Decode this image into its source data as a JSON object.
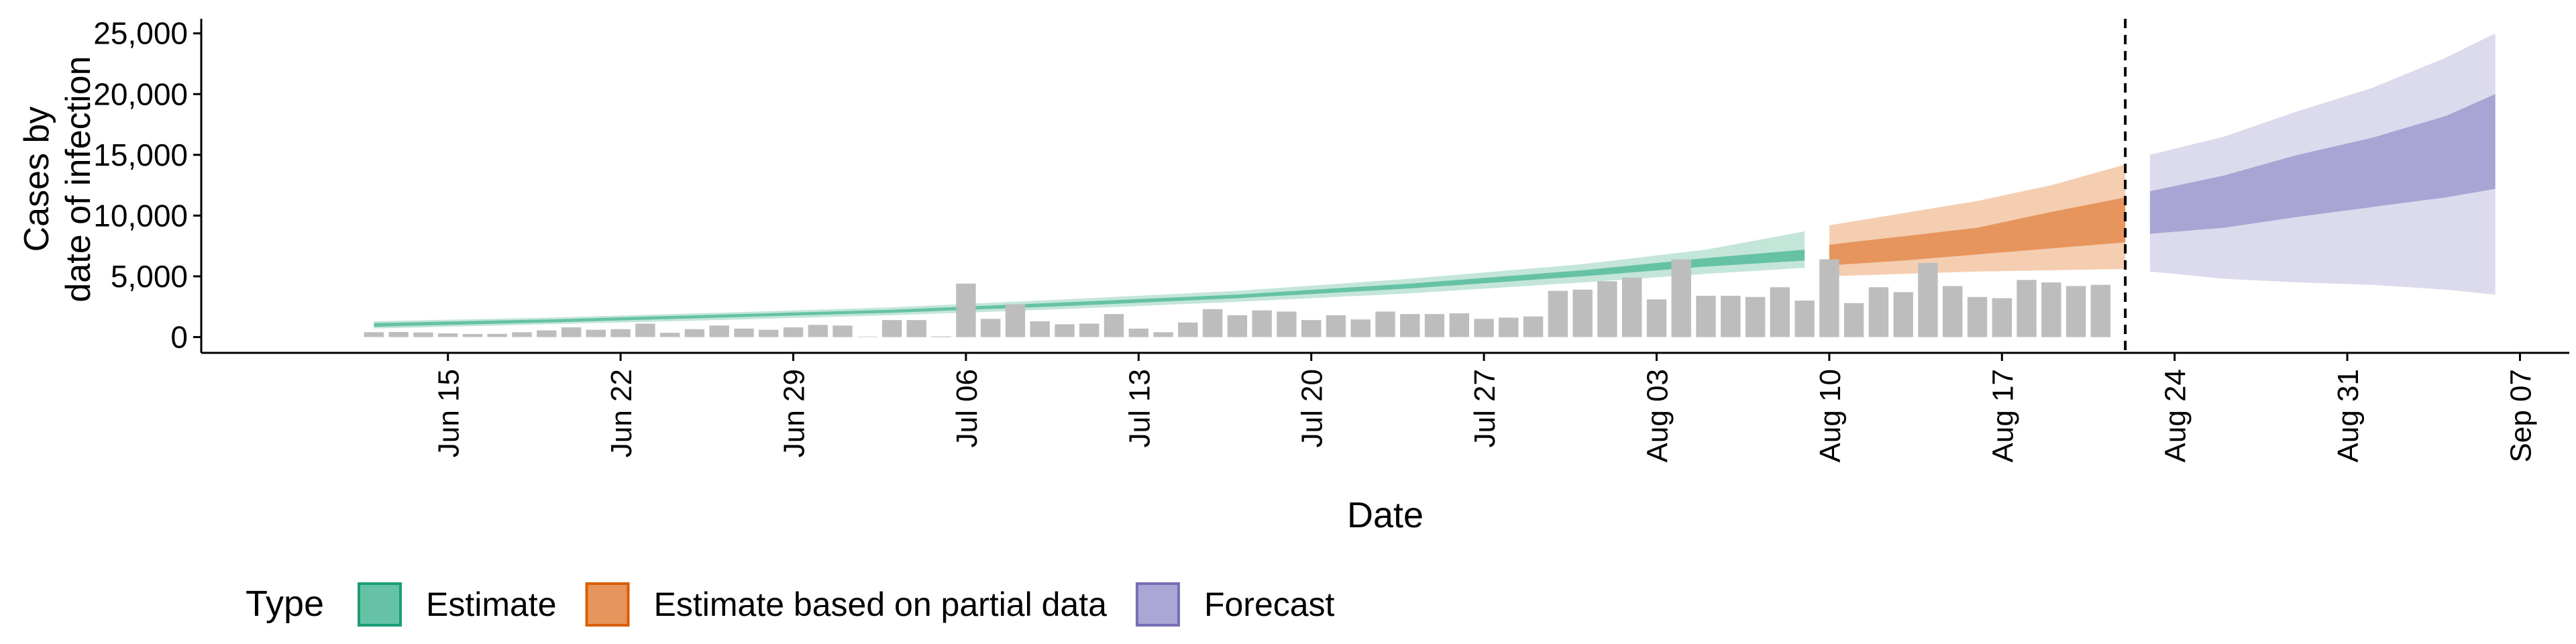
{
  "chart_data": {
    "type": "bar",
    "xlabel": "Date",
    "ylabel": [
      "Cases by",
      "date of infection"
    ],
    "x_ticks": [
      "2020-06-15",
      "2020-06-22",
      "2020-06-29",
      "2020-07-06",
      "2020-07-13",
      "2020-07-20",
      "2020-07-27",
      "2020-08-03",
      "2020-08-10",
      "2020-08-17",
      "2020-08-24",
      "2020-08-31",
      "2020-09-07"
    ],
    "x_tick_labels": [
      "Jun 15",
      "Jun 22",
      "Jun 29",
      "Jul 06",
      "Jul 13",
      "Jul 20",
      "Jul 27",
      "Aug 03",
      "Aug 10",
      "Aug 17",
      "Aug 24",
      "Aug 31",
      "Sep 07"
    ],
    "y_ticks": [
      0,
      5000,
      10000,
      15000,
      20000,
      25000
    ],
    "y_tick_labels": [
      "0",
      "5,000",
      "10,000",
      "15,000",
      "20,000",
      "25,000"
    ],
    "xlim": [
      "2020-06-05",
      "2020-09-09"
    ],
    "ylim": [
      -1300,
      26200
    ],
    "forecast_start": "2020-08-22",
    "grid": false,
    "legend_position": "bottom",
    "legend_title": "Type",
    "legend": [
      {
        "label": "Estimate",
        "fill": "#66c2a5",
        "stroke": "#1b9e77"
      },
      {
        "label": "Estimate based on partial data",
        "fill": "#e6955d",
        "stroke": "#d95f02"
      },
      {
        "label": "Forecast",
        "fill": "#aaa6d6",
        "stroke": "#7570b3"
      }
    ],
    "colors": {
      "bars": "#bdbdbd",
      "estimate_outer": "#c3e6d9",
      "estimate_inner": "#66c2a5",
      "partial_outer": "#f5cdb0",
      "partial_inner": "#e6955d",
      "forecast_outer": "#dcdaed",
      "forecast_inner": "#a8a4d4",
      "divider": "#000000"
    },
    "observed_cases": {
      "start": "2020-06-12",
      "values": [
        400,
        420,
        380,
        300,
        250,
        260,
        400,
        550,
        800,
        600,
        650,
        1100,
        350,
        650,
        950,
        700,
        600,
        800,
        1000,
        950,
        40,
        1400,
        1400,
        60,
        4400,
        1500,
        2700,
        1300,
        1050,
        1100,
        1900,
        700,
        400,
        1200,
        2300,
        1800,
        2200,
        2100,
        1400,
        1800,
        1450,
        2100,
        1900,
        1900,
        1950,
        1500,
        1600,
        1700,
        3800,
        3900,
        4600,
        4900,
        3100,
        6400,
        3400,
        3400,
        3300,
        4100,
        3000,
        6400,
        2800,
        4100,
        3700,
        6100,
        4200,
        3300,
        3200,
        4700,
        4500,
        4200,
        4300
      ]
    },
    "series": [
      {
        "name": "Estimate",
        "x": [
          "2020-06-12",
          "2020-06-19",
          "2020-06-26",
          "2020-07-03",
          "2020-07-10",
          "2020-07-17",
          "2020-07-24",
          "2020-07-31",
          "2020-08-05",
          "2020-08-09"
        ],
        "outer_low": [
          700,
          1050,
          1400,
          1800,
          2300,
          2900,
          3600,
          4500,
          5200,
          5700
        ],
        "outer_high": [
          1300,
          1600,
          2000,
          2450,
          3100,
          3800,
          4800,
          6000,
          7200,
          8700
        ],
        "inner_low": [
          850,
          1200,
          1600,
          2000,
          2550,
          3200,
          4000,
          5000,
          5800,
          6300
        ],
        "inner_high": [
          1150,
          1450,
          1850,
          2250,
          2850,
          3500,
          4400,
          5500,
          6500,
          7200
        ]
      },
      {
        "name": "Estimate based on partial data",
        "x": [
          "2020-08-10",
          "2020-08-13",
          "2020-08-16",
          "2020-08-19",
          "2020-08-22"
        ],
        "outer_low": [
          5000,
          5200,
          5400,
          5500,
          5600
        ],
        "outer_high": [
          9200,
          10200,
          11200,
          12500,
          14200
        ],
        "inner_low": [
          5900,
          6300,
          6800,
          7300,
          7800
        ],
        "inner_high": [
          7600,
          8300,
          9000,
          10300,
          11500
        ]
      },
      {
        "name": "Forecast",
        "x": [
          "2020-08-23",
          "2020-08-26",
          "2020-08-29",
          "2020-09-01",
          "2020-09-04",
          "2020-09-06"
        ],
        "outer_low": [
          5400,
          4800,
          4500,
          4300,
          3900,
          3500
        ],
        "outer_high": [
          15000,
          16500,
          18600,
          20500,
          23000,
          25000
        ],
        "inner_low": [
          8500,
          9000,
          9900,
          10700,
          11500,
          12200
        ],
        "inner_high": [
          12000,
          13300,
          15000,
          16400,
          18200,
          20000
        ]
      }
    ]
  }
}
